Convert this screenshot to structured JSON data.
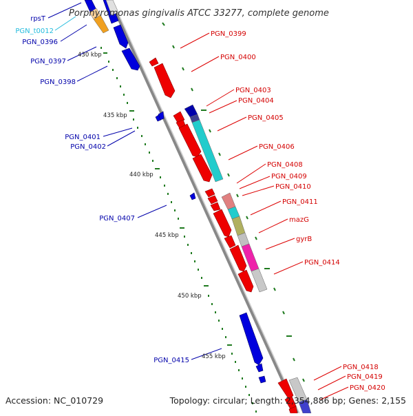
{
  "title": "Porphyromonas gingivalis ATCC 33277, complete genome",
  "footer": {
    "accession": "Accession: NC_010729",
    "info": "Topology: circular; Length: 2,354,886 bp; Genes: 2,155"
  },
  "colors": {
    "forward_label": "#d40000",
    "reverse_label": "#0000aa",
    "trna_label": "#22bbdd",
    "forward_gene": "#ee0000",
    "reverse_gene": "#0000dd",
    "backbone": "#888888",
    "tick": "#1e7a1e"
  },
  "scale_labels": [
    {
      "text": "430 kbp",
      "kbp": 430
    },
    {
      "text": "435 kbp",
      "kbp": 435
    },
    {
      "text": "440 kbp",
      "kbp": 440
    },
    {
      "text": "445 kbp",
      "kbp": 445
    },
    {
      "text": "450 kbp",
      "kbp": 450
    },
    {
      "text": "455 kbp",
      "kbp": 455
    }
  ],
  "gene_labels": [
    {
      "text": "rpsT",
      "strand": "reverse"
    },
    {
      "text": "PGN_t0012",
      "strand": "trna"
    },
    {
      "text": "PGN_0396",
      "strand": "reverse"
    },
    {
      "text": "PGN_0397",
      "strand": "reverse"
    },
    {
      "text": "PGN_0398",
      "strand": "reverse"
    },
    {
      "text": "PGN_0401",
      "strand": "reverse"
    },
    {
      "text": "PGN_0402",
      "strand": "reverse"
    },
    {
      "text": "PGN_0407",
      "strand": "reverse"
    },
    {
      "text": "PGN_0415",
      "strand": "reverse"
    },
    {
      "text": "PGN_0399",
      "strand": "forward"
    },
    {
      "text": "PGN_0400",
      "strand": "forward"
    },
    {
      "text": "PGN_0403",
      "strand": "forward"
    },
    {
      "text": "PGN_0404",
      "strand": "forward"
    },
    {
      "text": "PGN_0405",
      "strand": "forward"
    },
    {
      "text": "PGN_0406",
      "strand": "forward"
    },
    {
      "text": "PGN_0408",
      "strand": "forward"
    },
    {
      "text": "PGN_0409",
      "strand": "forward"
    },
    {
      "text": "PGN_0410",
      "strand": "forward"
    },
    {
      "text": "PGN_0411",
      "strand": "forward"
    },
    {
      "text": "mazG",
      "strand": "forward"
    },
    {
      "text": "gyrB",
      "strand": "forward"
    },
    {
      "text": "PGN_0414",
      "strand": "forward"
    },
    {
      "text": "PGN_0418",
      "strand": "forward"
    },
    {
      "text": "PGN_0419",
      "strand": "forward"
    },
    {
      "text": "PGN_0420",
      "strand": "forward"
    }
  ]
}
